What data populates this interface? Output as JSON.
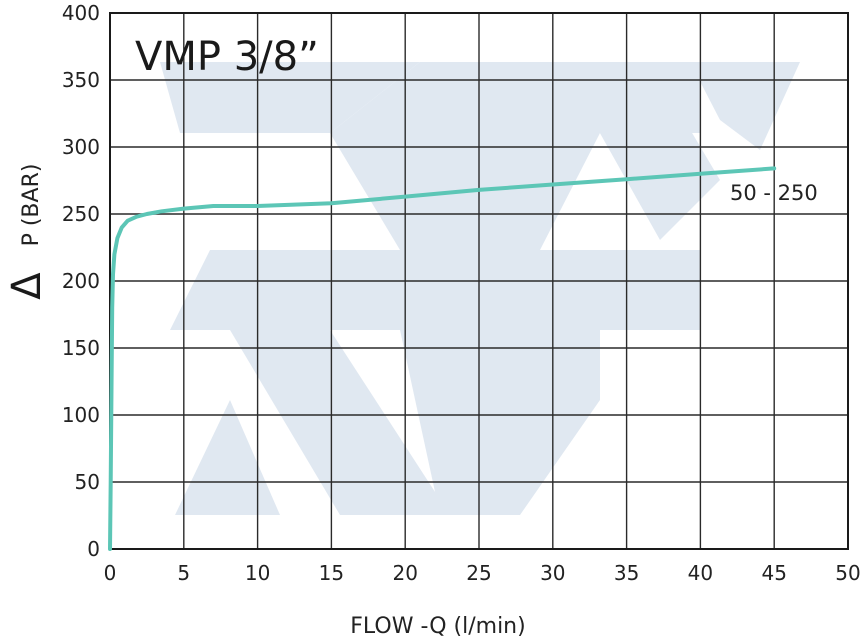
{
  "chart_data": {
    "type": "line",
    "title": "VMP 3/8”",
    "xlabel": "FLOW -Q  (l/min)",
    "ylabel_symbol": "Δ",
    "ylabel": "P (BAR)",
    "xlim": [
      0,
      50
    ],
    "ylim": [
      0,
      400
    ],
    "x_ticks": [
      0,
      5,
      10,
      15,
      20,
      25,
      30,
      35,
      40,
      45,
      50
    ],
    "y_ticks": [
      0,
      50,
      100,
      150,
      200,
      250,
      300,
      350,
      400
    ],
    "grid": true,
    "series": [
      {
        "name": "50 - 250",
        "color": "#5cc6b6",
        "x": [
          0,
          0.05,
          0.1,
          0.15,
          0.2,
          0.3,
          0.5,
          0.8,
          1.2,
          1.8,
          2.5,
          3.5,
          5,
          7,
          10,
          15,
          20,
          25,
          30,
          35,
          40,
          45
        ],
        "y": [
          0,
          50,
          120,
          180,
          205,
          220,
          232,
          240,
          245,
          248,
          250,
          252,
          254,
          256,
          256,
          258,
          263,
          268,
          272,
          276,
          280,
          284
        ]
      }
    ]
  }
}
